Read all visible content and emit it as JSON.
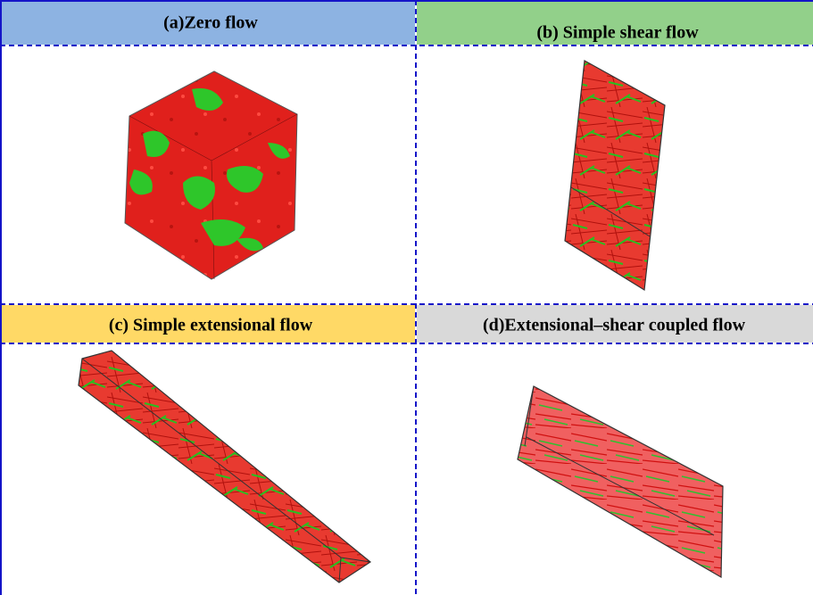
{
  "panels": [
    {
      "title": "(a)Zero flow"
    },
    {
      "title": "(b) Simple shear flow"
    },
    {
      "title": "(c) Simple extensional flow"
    },
    {
      "title": "(d)Extensional–shear coupled flow"
    }
  ]
}
